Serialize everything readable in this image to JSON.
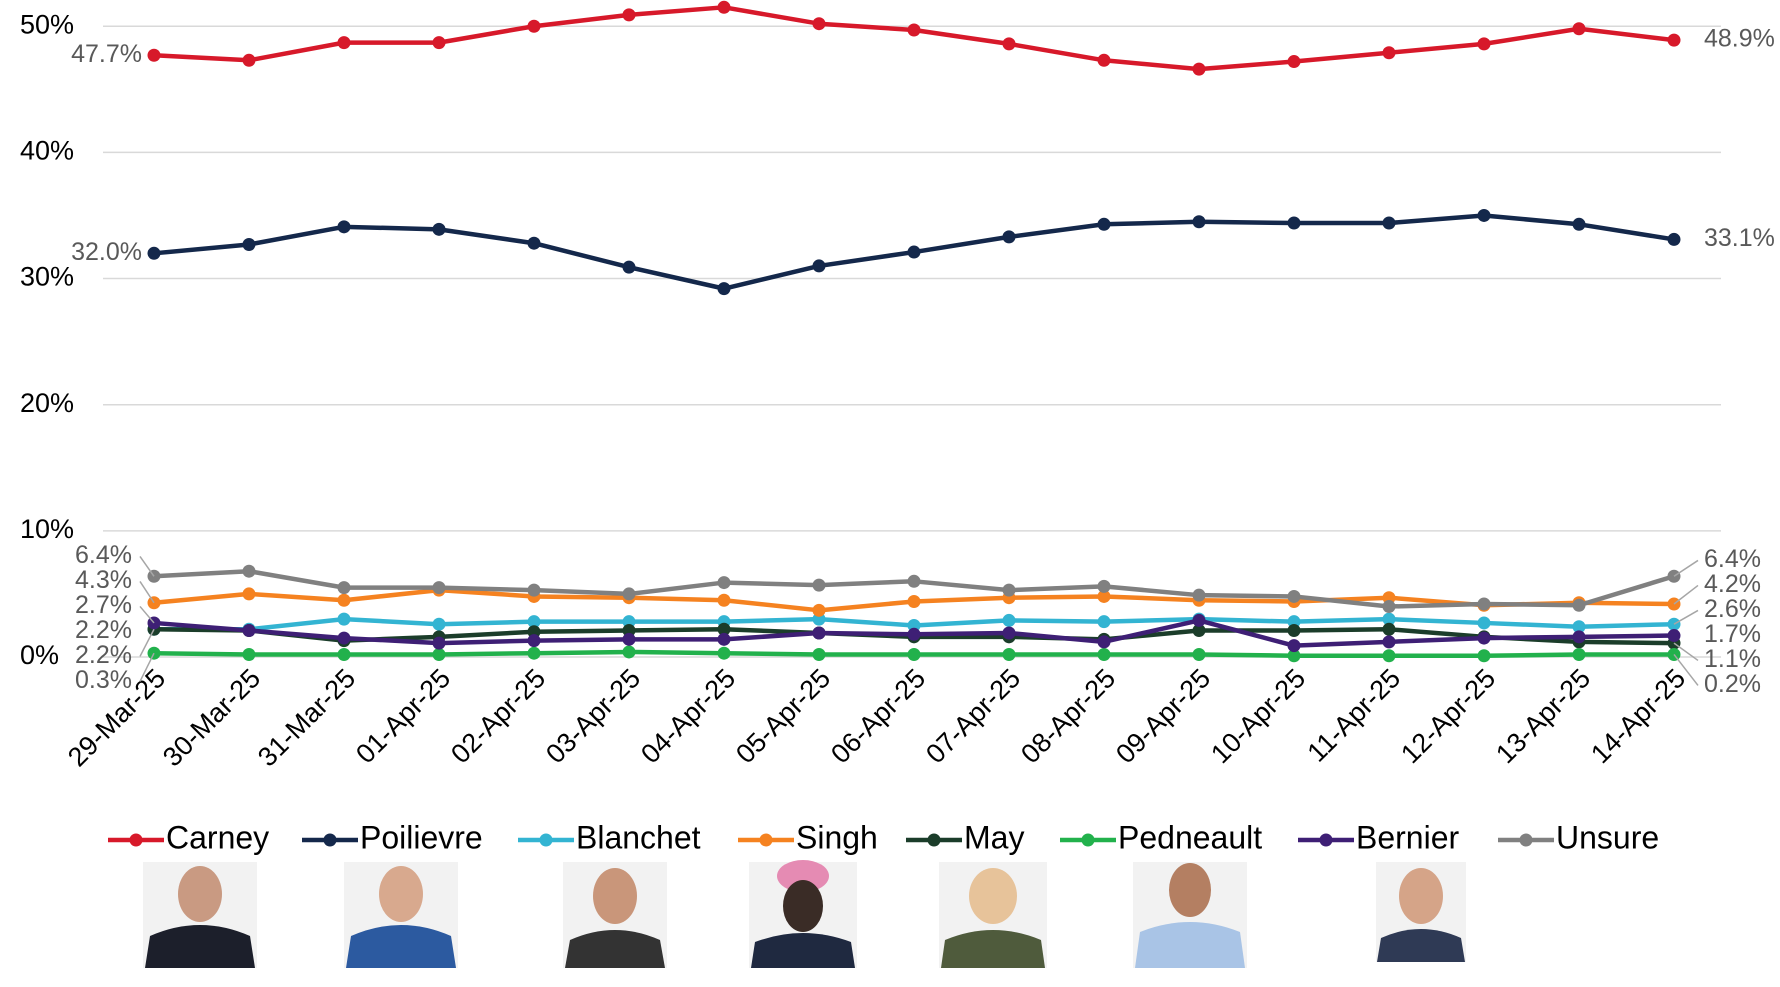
{
  "chart_data": {
    "type": "line",
    "x": [
      "29-Mar-25",
      "30-Mar-25",
      "31-Mar-25",
      "01-Apr-25",
      "02-Apr-25",
      "03-Apr-25",
      "04-Apr-25",
      "05-Apr-25",
      "06-Apr-25",
      "07-Apr-25",
      "08-Apr-25",
      "09-Apr-25",
      "10-Apr-25",
      "11-Apr-25",
      "12-Apr-25",
      "13-Apr-25",
      "14-Apr-25"
    ],
    "ylim": [
      0,
      52
    ],
    "yticks": [
      {
        "value": 0,
        "label": "0%"
      },
      {
        "value": 10,
        "label": "10%"
      },
      {
        "value": 20,
        "label": "20%"
      },
      {
        "value": 30,
        "label": "30%"
      },
      {
        "value": 40,
        "label": "40%"
      },
      {
        "value": 50,
        "label": "50%"
      }
    ],
    "grid": true,
    "legend": "bottom",
    "series": [
      {
        "name": "Carney",
        "color": "#d7192a",
        "values": [
          47.7,
          47.3,
          48.7,
          48.7,
          50.0,
          50.9,
          51.5,
          50.2,
          49.7,
          48.6,
          47.3,
          46.6,
          47.2,
          47.9,
          48.6,
          49.8,
          48.9
        ],
        "value_labels": [
          "47.7%",
          null,
          null,
          null,
          null,
          null,
          null,
          null,
          null,
          null,
          null,
          null,
          null,
          null,
          null,
          null,
          "48.9%"
        ]
      },
      {
        "name": "Poilievre",
        "color": "#14284b",
        "values": [
          32.0,
          32.7,
          34.1,
          33.9,
          32.8,
          30.9,
          29.2,
          31.0,
          32.1,
          33.3,
          34.3,
          34.5,
          34.4,
          34.4,
          35.0,
          34.3,
          33.1
        ],
        "value_labels": [
          "32.0%",
          null,
          null,
          null,
          null,
          null,
          null,
          null,
          null,
          null,
          null,
          null,
          null,
          null,
          null,
          null,
          "33.1%"
        ]
      },
      {
        "name": "Blanchet",
        "color": "#33b4d2",
        "values": [
          2.2,
          2.2,
          3.0,
          2.6,
          2.8,
          2.8,
          2.8,
          3.0,
          2.5,
          2.9,
          2.8,
          3.0,
          2.8,
          3.0,
          2.7,
          2.4,
          2.6
        ],
        "value_labels": [
          "2.2%",
          null,
          null,
          null,
          null,
          null,
          null,
          null,
          null,
          null,
          null,
          null,
          null,
          null,
          null,
          null,
          "2.6%"
        ]
      },
      {
        "name": "Singh",
        "color": "#f58220",
        "values": [
          4.3,
          5.0,
          4.5,
          5.3,
          4.8,
          4.7,
          4.5,
          3.7,
          4.4,
          4.7,
          4.8,
          4.5,
          4.4,
          4.7,
          4.1,
          4.3,
          4.2
        ],
        "value_labels": [
          "4.3%",
          null,
          null,
          null,
          null,
          null,
          null,
          null,
          null,
          null,
          null,
          null,
          null,
          null,
          null,
          null,
          "4.2%"
        ]
      },
      {
        "name": "May",
        "color": "#1b3d2a",
        "values": [
          2.2,
          2.1,
          1.3,
          1.6,
          2.0,
          2.1,
          2.2,
          1.9,
          1.6,
          1.6,
          1.4,
          2.1,
          2.1,
          2.2,
          1.6,
          1.2,
          1.1
        ],
        "value_labels": [
          "2.2%",
          null,
          null,
          null,
          null,
          null,
          null,
          null,
          null,
          null,
          null,
          null,
          null,
          null,
          null,
          null,
          "1.1%"
        ]
      },
      {
        "name": "Pedneault",
        "color": "#22b14c",
        "values": [
          0.3,
          0.2,
          0.2,
          0.2,
          0.3,
          0.4,
          0.3,
          0.2,
          0.2,
          0.2,
          0.2,
          0.2,
          0.1,
          0.1,
          0.1,
          0.2,
          0.2
        ],
        "value_labels": [
          "0.3%",
          null,
          null,
          null,
          null,
          null,
          null,
          null,
          null,
          null,
          null,
          null,
          null,
          null,
          null,
          null,
          "0.2%"
        ]
      },
      {
        "name": "Bernier",
        "color": "#3e1f75",
        "values": [
          2.7,
          2.1,
          1.5,
          1.1,
          1.3,
          1.4,
          1.4,
          1.9,
          1.8,
          1.9,
          1.2,
          2.9,
          0.9,
          1.2,
          1.5,
          1.6,
          1.7
        ],
        "value_labels": [
          "2.7%",
          null,
          null,
          null,
          null,
          null,
          null,
          null,
          null,
          null,
          null,
          null,
          null,
          null,
          null,
          null,
          "1.7%"
        ]
      },
      {
        "name": "Unsure",
        "color": "#808080",
        "values": [
          6.4,
          6.8,
          5.5,
          5.5,
          5.3,
          5.0,
          5.9,
          5.7,
          6.0,
          5.3,
          5.6,
          4.9,
          4.8,
          4.0,
          4.2,
          4.1,
          6.4
        ],
        "value_labels": [
          "6.4%",
          null,
          null,
          null,
          null,
          null,
          null,
          null,
          null,
          null,
          null,
          null,
          null,
          null,
          null,
          null,
          "6.4%"
        ]
      }
    ]
  }
}
